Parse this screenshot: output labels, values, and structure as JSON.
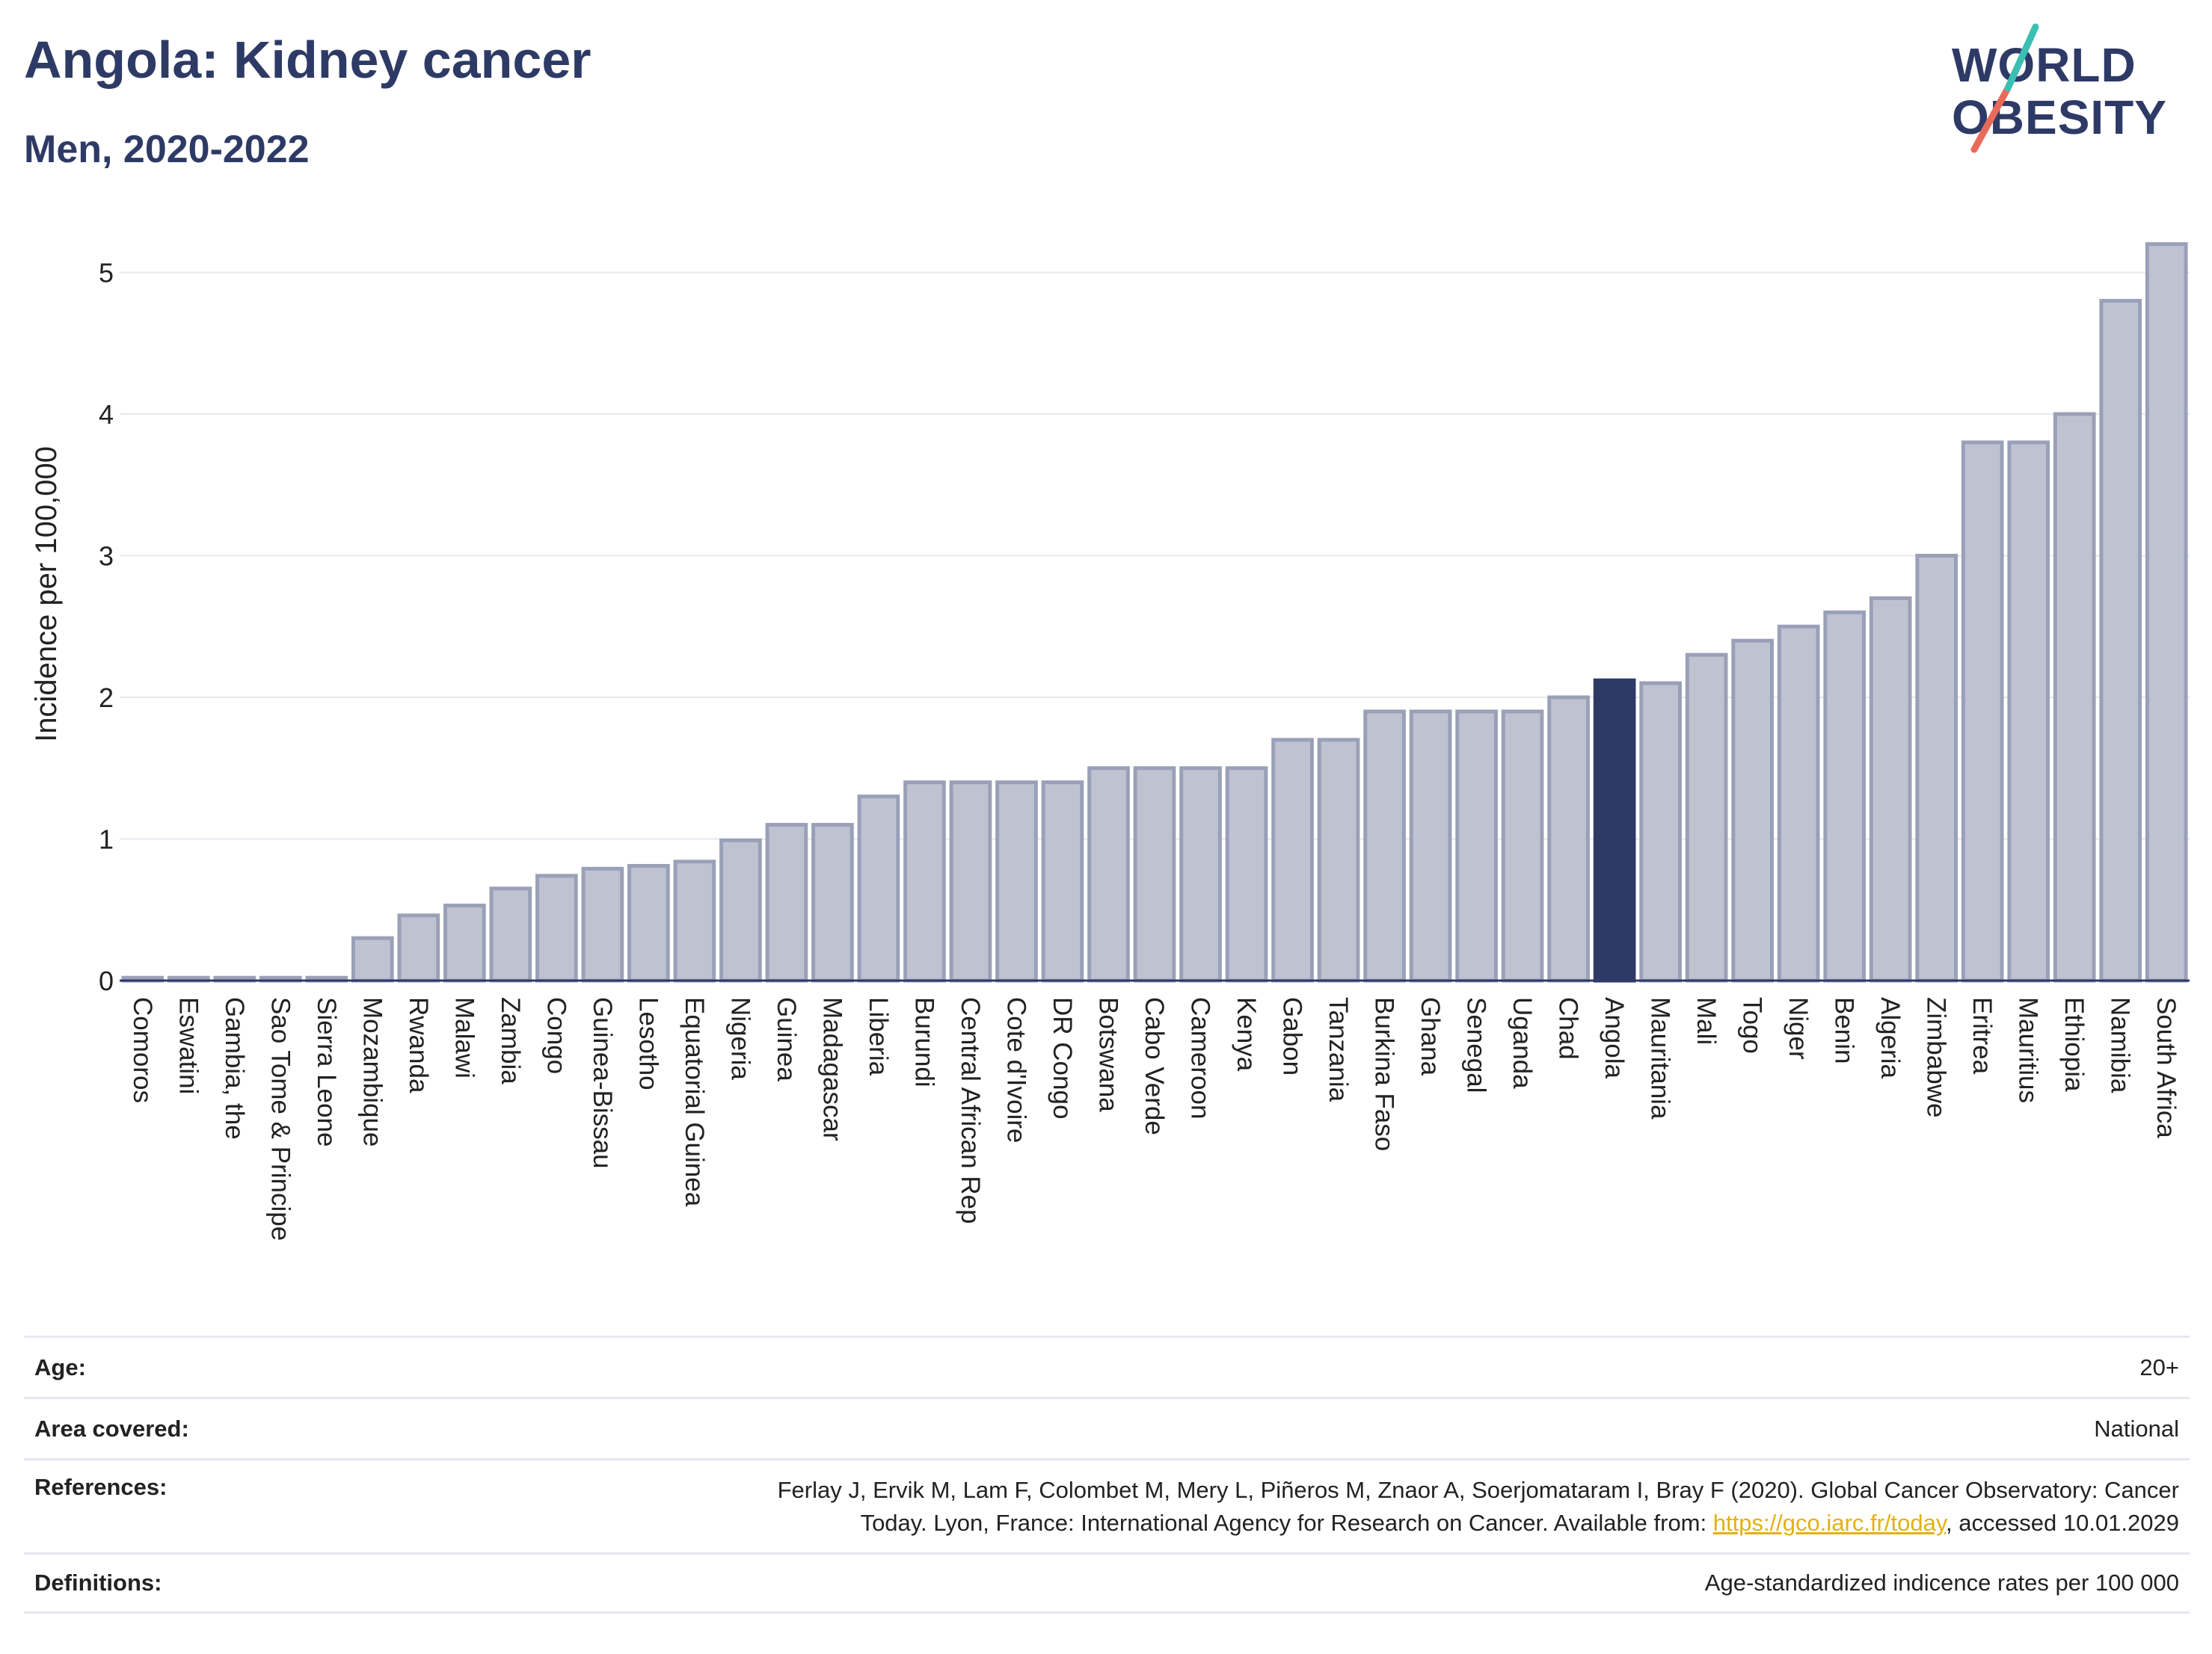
{
  "header": {
    "title": "Angola: Kidney cancer",
    "subtitle": "Men, 2020-2022"
  },
  "logo": {
    "line1": "WORLD",
    "line2": "OBESITY",
    "colors": [
      "#2e3a66",
      "#ea6a5a",
      "#3bbfb3"
    ]
  },
  "chart_data": {
    "type": "bar",
    "ylabel": "Incidence per 100,000",
    "ylim": [
      0,
      5.25
    ],
    "yticks": [
      0,
      1,
      2,
      3,
      4,
      5
    ],
    "grid": true,
    "highlight": "Angola",
    "colors": {
      "bar": "#bfc3d1",
      "bar_edge": "#9aa0b8",
      "highlight": "#2e3a66"
    },
    "categories": [
      "Comoros",
      "Eswatini",
      "Gambia, the",
      "Sao Tome & Principe",
      "Sierra Leone",
      "Mozambique",
      "Rwanda",
      "Malawi",
      "Zambia",
      "Congo",
      "Guinea-Bissau",
      "Lesotho",
      "Equatorial Guinea",
      "Nigeria",
      "Guinea",
      "Madagascar",
      "Liberia",
      "Burundi",
      "Central African Rep",
      "Cote d'Ivoire",
      "DR Congo",
      "Botswana",
      "Cabo Verde",
      "Cameroon",
      "Kenya",
      "Gabon",
      "Tanzania",
      "Burkina Faso",
      "Ghana",
      "Senegal",
      "Uganda",
      "Chad",
      "Angola",
      "Mauritania",
      "Mali",
      "Togo",
      "Niger",
      "Benin",
      "Algeria",
      "Zimbabwe",
      "Eritrea",
      "Mauritius",
      "Ethiopia",
      "Namibia",
      "South Africa"
    ],
    "values": [
      0.02,
      0.02,
      0.02,
      0.02,
      0.02,
      0.3,
      0.46,
      0.53,
      0.65,
      0.74,
      0.79,
      0.81,
      0.84,
      0.99,
      1.1,
      1.1,
      1.3,
      1.4,
      1.4,
      1.4,
      1.4,
      1.5,
      1.5,
      1.5,
      1.5,
      1.7,
      1.7,
      1.9,
      1.9,
      1.9,
      1.9,
      2.0,
      2.12,
      2.1,
      2.3,
      2.4,
      2.5,
      2.6,
      2.7,
      3.0,
      3.8,
      3.8,
      4.0,
      4.8,
      5.2
    ]
  },
  "footer": {
    "age_label": "Age:",
    "age_value": "20+",
    "area_label": "Area covered:",
    "area_value": "National",
    "references_label": "References:",
    "references_line1": "Ferlay J, Ervik M, Lam F, Colombet M, Mery L, Piñeros M, Znaor A, Soerjomataram I, Bray F (2020). Global Cancer Observatory: Cancer",
    "references_line2_pre": "Today. Lyon, France: International Agency for Research on Cancer. Available from: ",
    "references_link": "https://gco.iarc.fr/today",
    "references_line2_post": ", accessed 10.01.2029",
    "definitions_label": "Definitions:",
    "definitions_value": "Age-standardized indicence rates per 100 000"
  }
}
